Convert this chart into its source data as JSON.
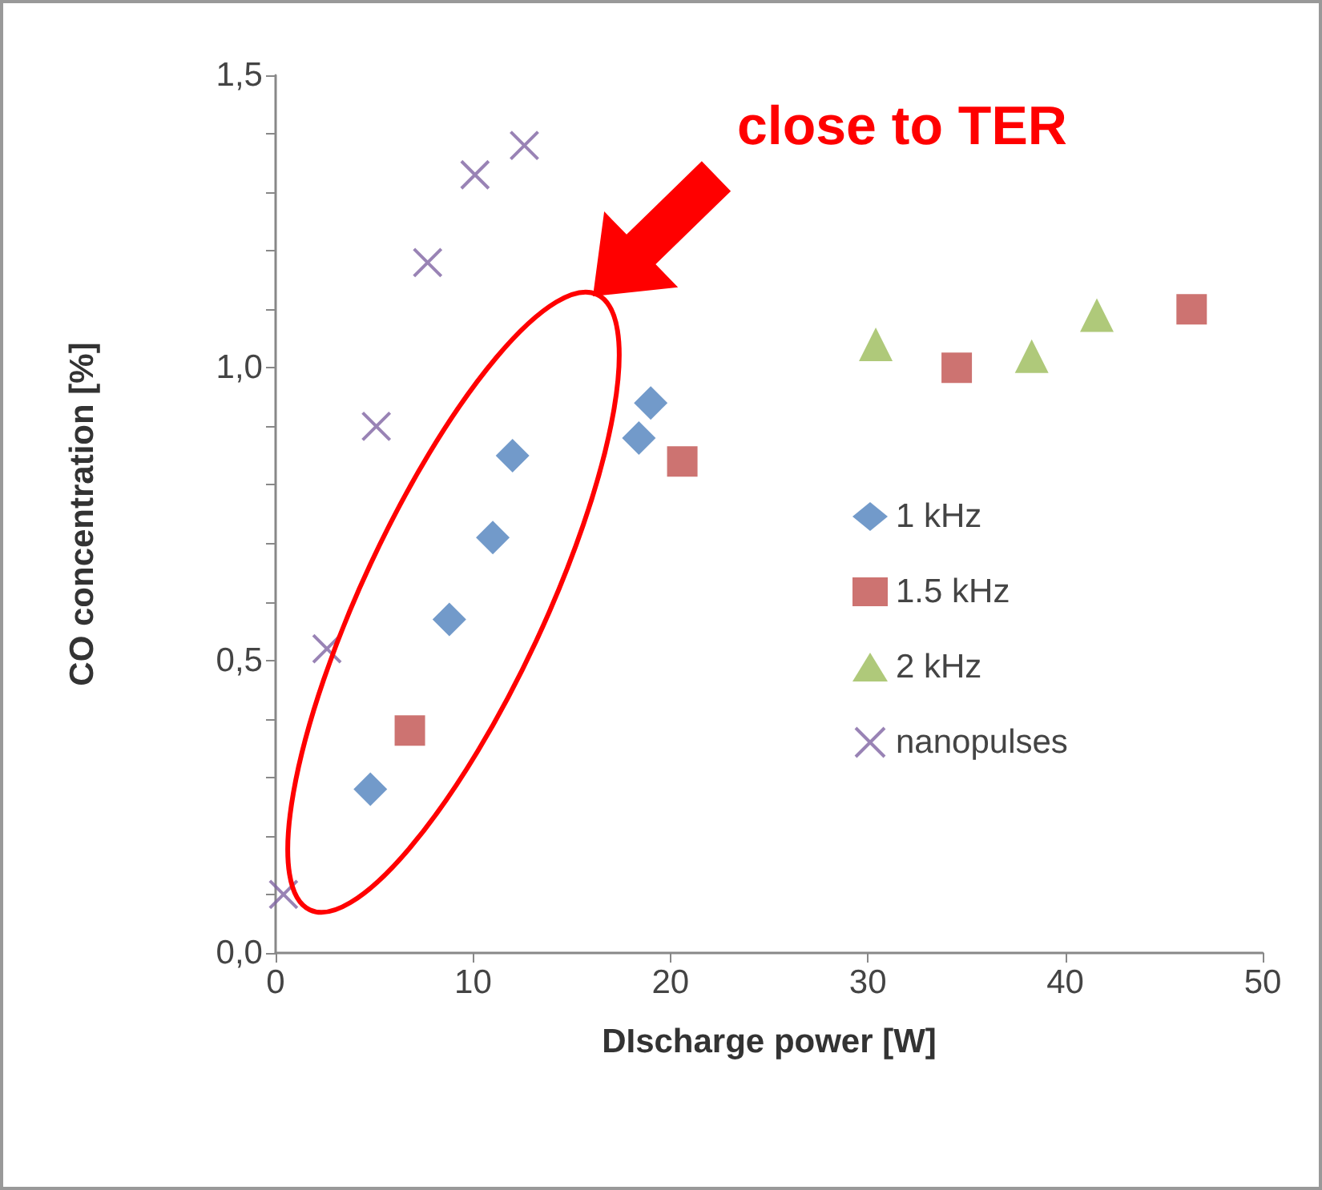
{
  "chart_data": {
    "type": "scatter",
    "xlabel": "DIscharge power [W]",
    "ylabel": "CO concentration [%]",
    "annotations": [
      "close to TER"
    ],
    "xlim": [
      0,
      50
    ],
    "xticks": [
      0,
      10,
      20,
      30,
      40,
      50
    ],
    "ylim": [
      0,
      1.5
    ],
    "yticks": [
      {
        "value": 0,
        "label": "0,0"
      },
      {
        "value": 0.1,
        "label": null
      },
      {
        "value": 0.2,
        "label": null
      },
      {
        "value": 0.3,
        "label": null
      },
      {
        "value": 0.4,
        "label": null
      },
      {
        "value": 0.5,
        "label": "0,5"
      },
      {
        "value": 0.6,
        "label": null
      },
      {
        "value": 0.7,
        "label": null
      },
      {
        "value": 0.8,
        "label": null
      },
      {
        "value": 0.9,
        "label": null
      },
      {
        "value": 1.0,
        "label": "1,0"
      },
      {
        "value": 1.1,
        "label": null
      },
      {
        "value": 1.2,
        "label": null
      },
      {
        "value": 1.3,
        "label": null
      },
      {
        "value": 1.4,
        "label": null
      },
      {
        "value": 1.5,
        "label": "1,5"
      }
    ],
    "grid": false,
    "legend": "right",
    "series": [
      {
        "name": "1 kHz",
        "color": "#4f81bd",
        "marker": "diamond",
        "x": [
          4.8,
          8.8,
          11.0,
          12.0,
          18.4,
          19.0
        ],
        "values": [
          0.28,
          0.57,
          0.71,
          0.85,
          0.88,
          0.94
        ]
      },
      {
        "name": "1.5 kHz",
        "color": "#c0504d",
        "marker": "square",
        "x": [
          6.8,
          20.6,
          34.5,
          46.4
        ],
        "values": [
          0.38,
          0.84,
          1.0,
          1.1
        ]
      },
      {
        "name": "2 kHz",
        "color": "#9bbb59",
        "marker": "triangle",
        "x": [
          30.4,
          38.3,
          41.6
        ],
        "values": [
          1.04,
          1.02,
          1.09
        ]
      },
      {
        "name": "nanopulses",
        "color": "#8064a2",
        "marker": "cross",
        "x": [
          0.4,
          2.6,
          5.1,
          7.7,
          10.1,
          12.6
        ],
        "values": [
          0.1,
          0.52,
          0.9,
          1.18,
          1.33,
          1.38
        ]
      }
    ]
  }
}
